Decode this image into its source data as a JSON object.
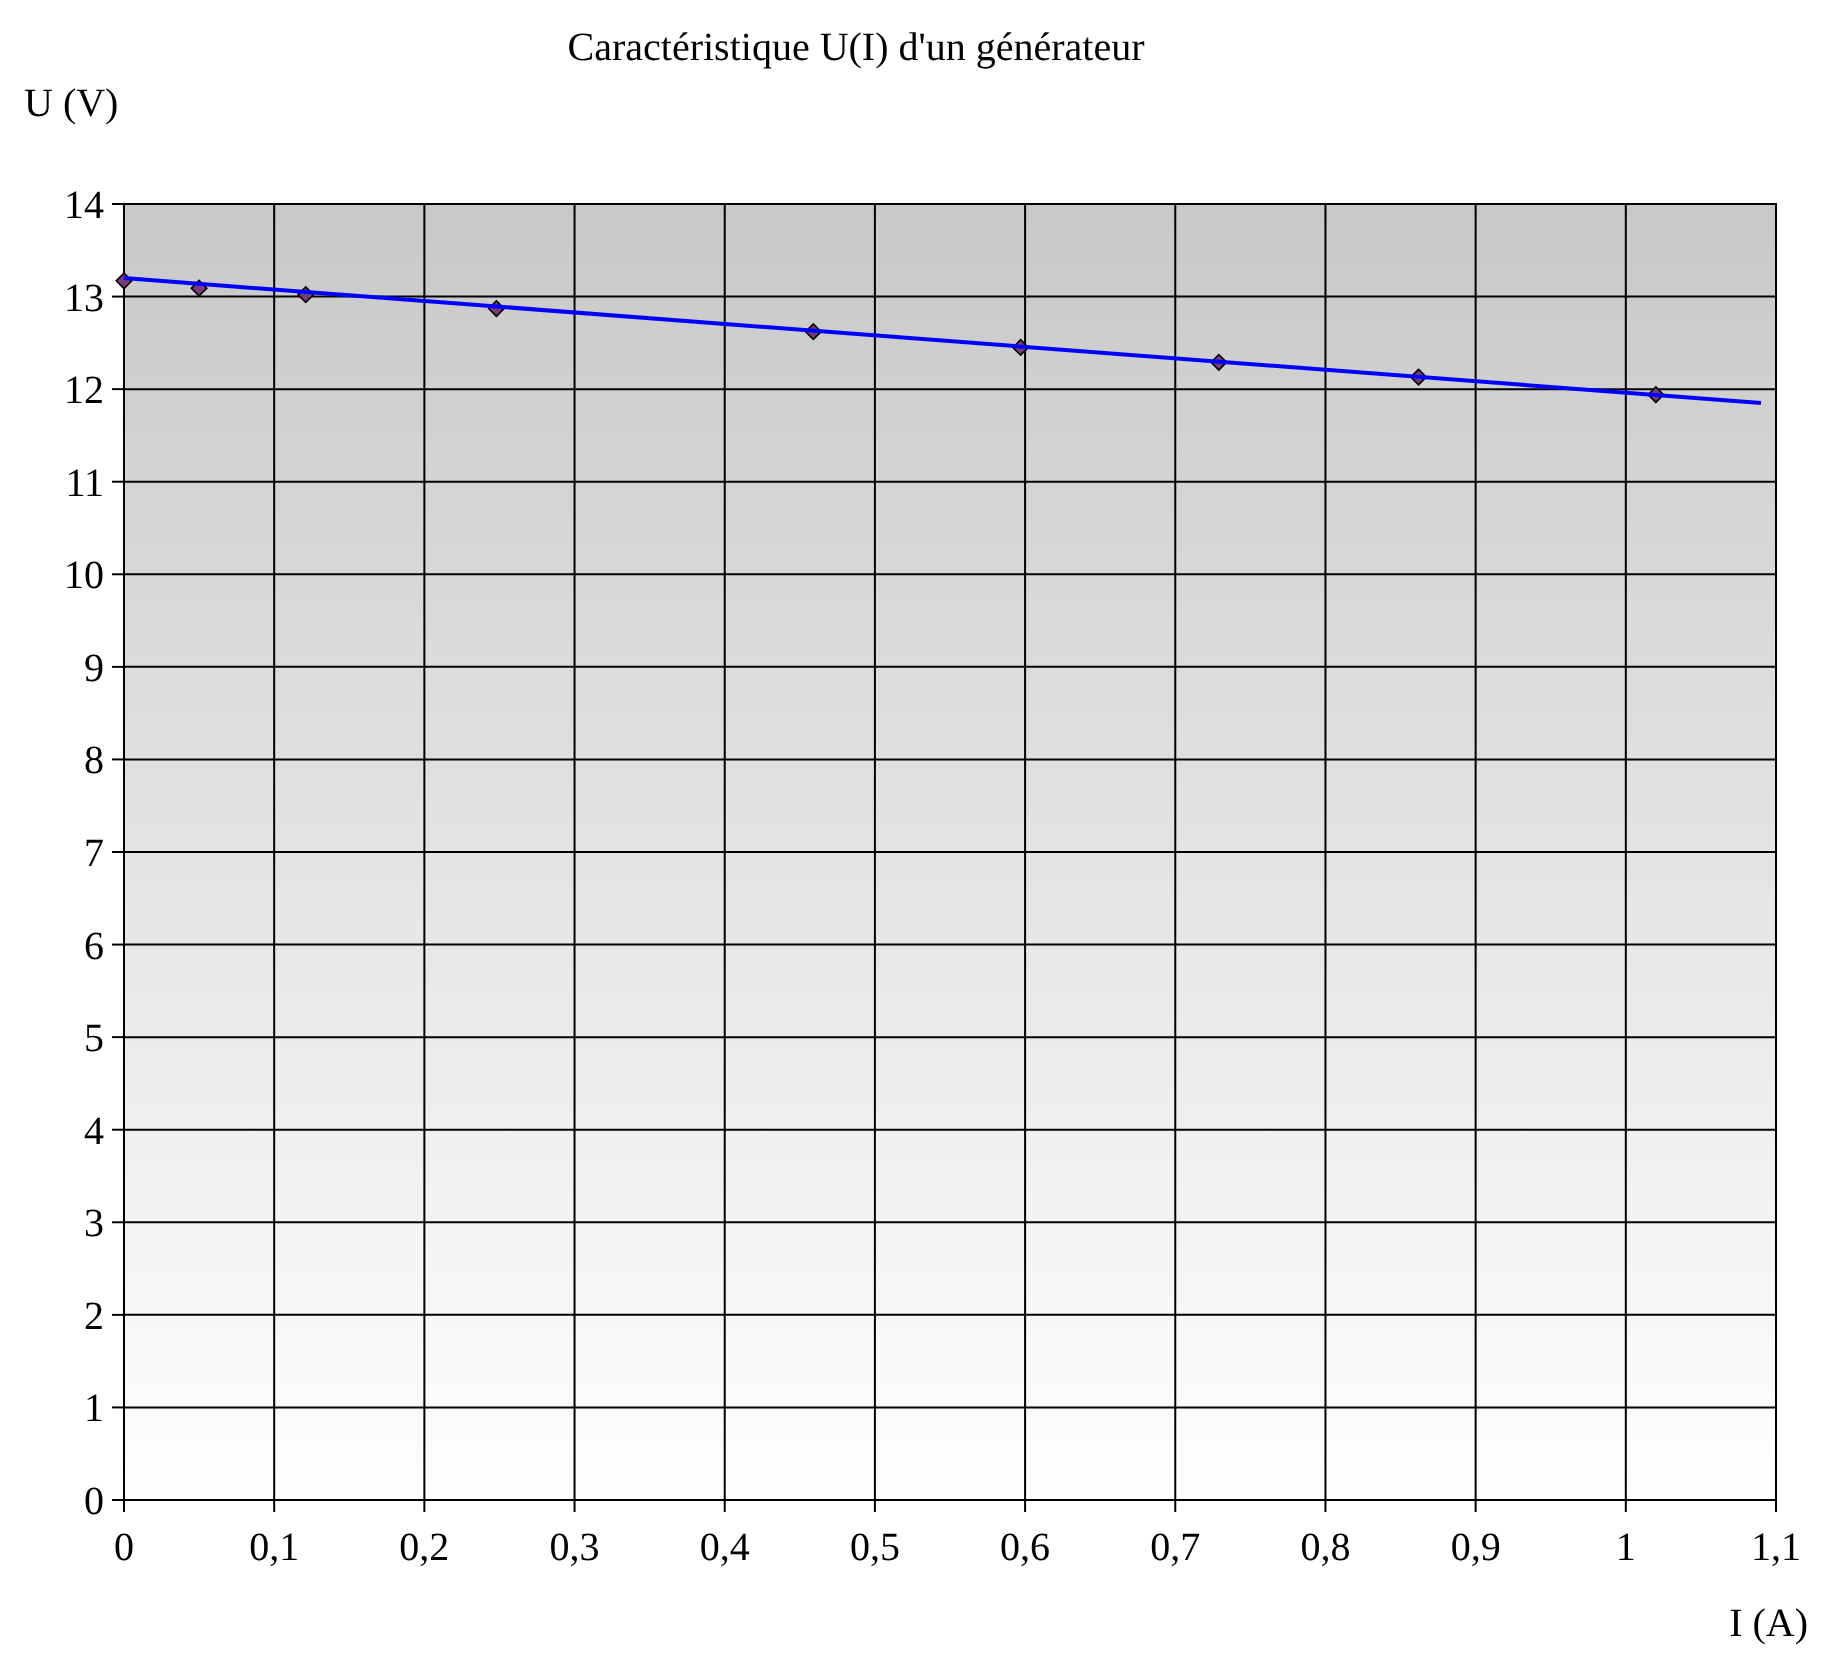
{
  "chart_data": {
    "type": "scatter",
    "title": "Caractéristique U(I) d'un générateur",
    "xlabel": "I (A)",
    "ylabel": "U (V)",
    "xlim": [
      0,
      1.1
    ],
    "xticks": [
      {
        "value": 0,
        "label": "0"
      },
      {
        "value": 0.1,
        "label": "0,1"
      },
      {
        "value": 0.2,
        "label": "0,2"
      },
      {
        "value": 0.3,
        "label": "0,3"
      },
      {
        "value": 0.4,
        "label": "0,4"
      },
      {
        "value": 0.5,
        "label": "0,5"
      },
      {
        "value": 0.6,
        "label": "0,6"
      },
      {
        "value": 0.7,
        "label": "0,7"
      },
      {
        "value": 0.8,
        "label": "0,8"
      },
      {
        "value": 0.9,
        "label": "0,9"
      },
      {
        "value": 1,
        "label": "1"
      },
      {
        "value": 1.1,
        "label": "1,1"
      }
    ],
    "ylim": [
      0,
      14
    ],
    "yticks": [
      0,
      1,
      2,
      3,
      4,
      5,
      6,
      7,
      8,
      9,
      10,
      11,
      12,
      13,
      14
    ],
    "grid": true,
    "series": [
      {
        "marker": "diamond",
        "color": "#7a3a7a",
        "x": [
          0,
          0.05,
          0.121,
          0.248,
          0.459,
          0.597,
          0.729,
          0.862,
          1.02
        ],
        "values": [
          13.17,
          13.09,
          13.02,
          12.87,
          12.62,
          12.45,
          12.29,
          12.13,
          11.94
        ]
      },
      {
        "type": "line",
        "marker": "none",
        "color": "#0000ff",
        "x": [
          0,
          1.09
        ],
        "values": [
          13.2,
          11.85
        ]
      }
    ]
  }
}
